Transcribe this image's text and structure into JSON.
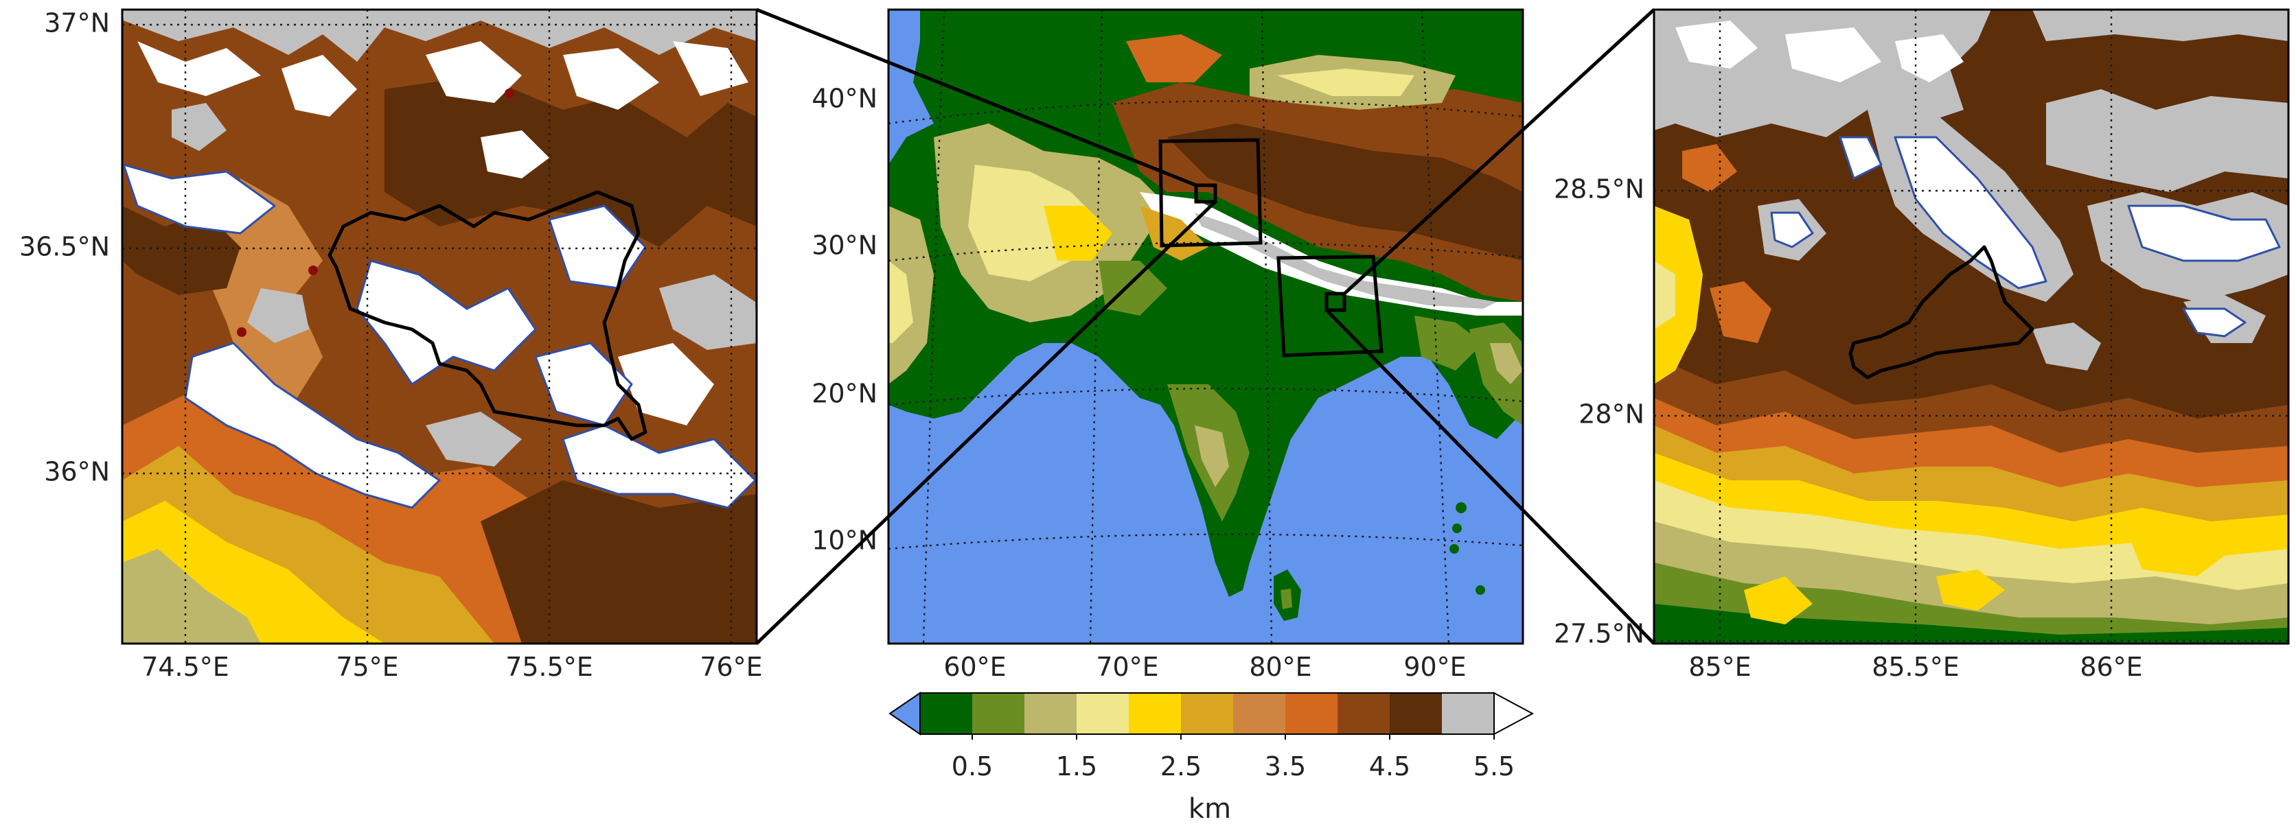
{
  "colors": {
    "ocean": "#6495ed",
    "dark_green": "#006400",
    "olive": "#6b8e23",
    "khaki": "#bdb76b",
    "pale": "#f0e68c",
    "gold": "#ffd700",
    "goldenrod": "#daa520",
    "peru": "#cd853f",
    "chocolate": "#d2691e",
    "saddle": "#8b4513",
    "dark_brown": "#5c2e0a",
    "grey": "#c0c0c0",
    "white": "#ffffff",
    "glacier_outline": "#2f4fa8",
    "basin_outline": "#000000"
  },
  "left_panel": {
    "lat_labels": [
      "37°N",
      "36.5°N",
      "36°N"
    ],
    "lon_labels": [
      "74.5°E",
      "75°E",
      "75.5°E",
      "76°E"
    ]
  },
  "center_panel": {
    "lat_labels": [
      "40°N",
      "30°N",
      "20°N",
      "10°N"
    ],
    "lon_labels": [
      "60°E",
      "70°E",
      "80°E",
      "90°E"
    ]
  },
  "right_panel": {
    "lat_labels": [
      "28.5°N",
      "28°N",
      "27.5°N"
    ],
    "lon_labels": [
      "85°E",
      "85.5°E",
      "86°E"
    ]
  },
  "colorbar": {
    "ticks": [
      "0.5",
      "1.5",
      "2.5",
      "3.5",
      "4.5",
      "5.5"
    ],
    "label": "km",
    "colors": [
      "#006400",
      "#6b8e23",
      "#bdb76b",
      "#f0e68c",
      "#ffd700",
      "#daa520",
      "#cd853f",
      "#d2691e",
      "#8b4513",
      "#5c2e0a",
      "#c0c0c0"
    ],
    "under_color": "#6495ed",
    "over_color": "#ffffff"
  }
}
